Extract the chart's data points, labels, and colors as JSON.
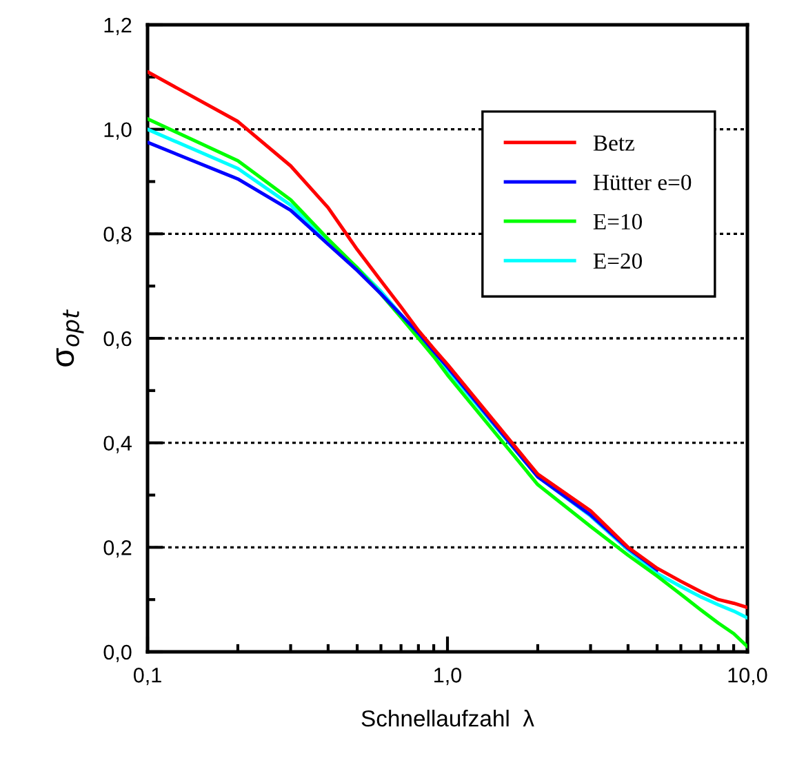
{
  "chart_data": {
    "type": "line",
    "xlabel": "Schnellaufzahl  λ",
    "ylabel": "σ$_{opt}$",
    "log": "x",
    "x": [
      0.1,
      0.2,
      0.3,
      0.4,
      0.5,
      0.6,
      0.7,
      0.8,
      0.9,
      1,
      2,
      3,
      4,
      5,
      6,
      7,
      8,
      9,
      10
    ],
    "series": [
      {
        "name": "Betz",
        "color": "#ff0000",
        "values": [
          1.11,
          1.015,
          0.93,
          0.85,
          0.77,
          0.71,
          0.66,
          0.615,
          0.58,
          0.55,
          0.34,
          0.27,
          0.2,
          0.16,
          0.135,
          0.115,
          0.1,
          0.093,
          0.085
        ]
      },
      {
        "name": "Hütter e=0",
        "color": "#0000ff",
        "values": [
          0.975,
          0.905,
          0.845,
          0.78,
          0.73,
          0.685,
          0.645,
          0.61,
          0.575,
          0.545,
          0.335,
          0.262,
          0.198,
          0.157,
          null,
          null,
          null,
          null,
          null
        ]
      },
      {
        "name": "E=10",
        "color": "#00ff00",
        "values": [
          1.02,
          0.94,
          0.865,
          0.79,
          0.735,
          0.685,
          0.64,
          0.6,
          0.565,
          0.53,
          0.32,
          0.24,
          0.185,
          0.145,
          0.11,
          0.08,
          0.055,
          0.035,
          0.01
        ]
      },
      {
        "name": "E=20",
        "color": "#00ffff",
        "values": [
          1.0,
          0.925,
          0.855,
          0.785,
          0.735,
          0.69,
          0.645,
          0.605,
          0.57,
          0.54,
          0.335,
          0.26,
          0.195,
          0.15,
          0.125,
          0.105,
          0.09,
          0.078,
          0.065
        ]
      }
    ],
    "xlim": [
      0.1,
      10
    ],
    "xticks": [
      {
        "value": 0.1,
        "label": "0,1"
      },
      {
        "value": 0.2,
        "label": null
      },
      {
        "value": 0.3,
        "label": null
      },
      {
        "value": 0.4,
        "label": null
      },
      {
        "value": 0.5,
        "label": null
      },
      {
        "value": 0.6,
        "label": null
      },
      {
        "value": 0.7,
        "label": null
      },
      {
        "value": 0.8,
        "label": null
      },
      {
        "value": 0.9,
        "label": null
      },
      {
        "value": 1,
        "label": "1,0"
      },
      {
        "value": 2,
        "label": null
      },
      {
        "value": 3,
        "label": null
      },
      {
        "value": 4,
        "label": null
      },
      {
        "value": 5,
        "label": null
      },
      {
        "value": 6,
        "label": null
      },
      {
        "value": 7,
        "label": null
      },
      {
        "value": 8,
        "label": null
      },
      {
        "value": 9,
        "label": null
      },
      {
        "value": 10,
        "label": "10,0"
      }
    ],
    "ylim": [
      0,
      1.2
    ],
    "yticks": [
      {
        "value": 0,
        "label": "0,0"
      },
      {
        "value": 0.1,
        "label": null
      },
      {
        "value": 0.2,
        "label": "0,2"
      },
      {
        "value": 0.3,
        "label": null
      },
      {
        "value": 0.4,
        "label": "0,4"
      },
      {
        "value": 0.5,
        "label": null
      },
      {
        "value": 0.6,
        "label": "0,6"
      },
      {
        "value": 0.7,
        "label": null
      },
      {
        "value": 0.8,
        "label": "0,8"
      },
      {
        "value": 0.9,
        "label": null
      },
      {
        "value": 1.0,
        "label": "1,0"
      },
      {
        "value": 1.1,
        "label": null
      },
      {
        "value": 1.2,
        "label": "1,2"
      }
    ],
    "grid": "y",
    "legend": "top right",
    "line_style": "solid",
    "marker": "none"
  }
}
